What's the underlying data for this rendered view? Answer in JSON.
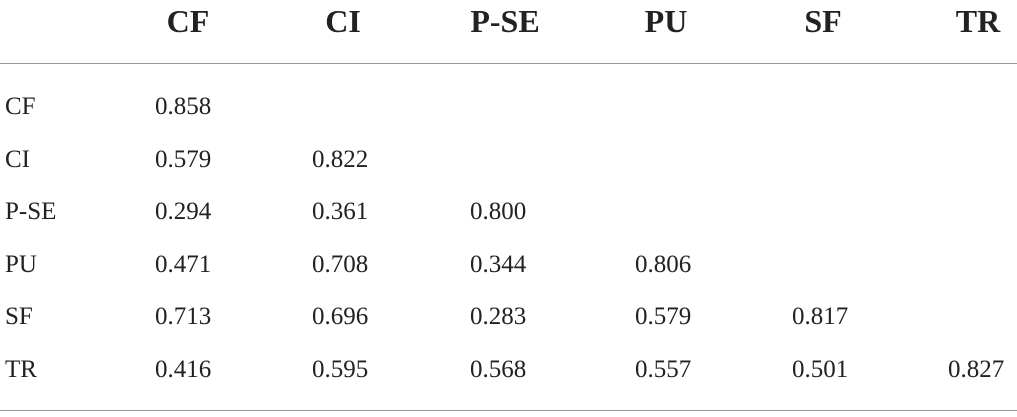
{
  "table": {
    "columns": [
      "CF",
      "CI",
      "P-SE",
      "PU",
      "SF",
      "TR"
    ],
    "rows": [
      {
        "label": "CF",
        "values": [
          "0.858"
        ]
      },
      {
        "label": "CI",
        "values": [
          "0.579",
          "0.822"
        ]
      },
      {
        "label": "P-SE",
        "values": [
          "0.294",
          "0.361",
          "0.800"
        ]
      },
      {
        "label": "PU",
        "values": [
          "0.471",
          "0.708",
          "0.344",
          "0.806"
        ]
      },
      {
        "label": "SF",
        "values": [
          "0.713",
          "0.696",
          "0.283",
          "0.579",
          "0.817"
        ]
      },
      {
        "label": "TR",
        "values": [
          "0.416",
          "0.595",
          "0.568",
          "0.557",
          "0.501",
          "0.827"
        ]
      }
    ]
  }
}
